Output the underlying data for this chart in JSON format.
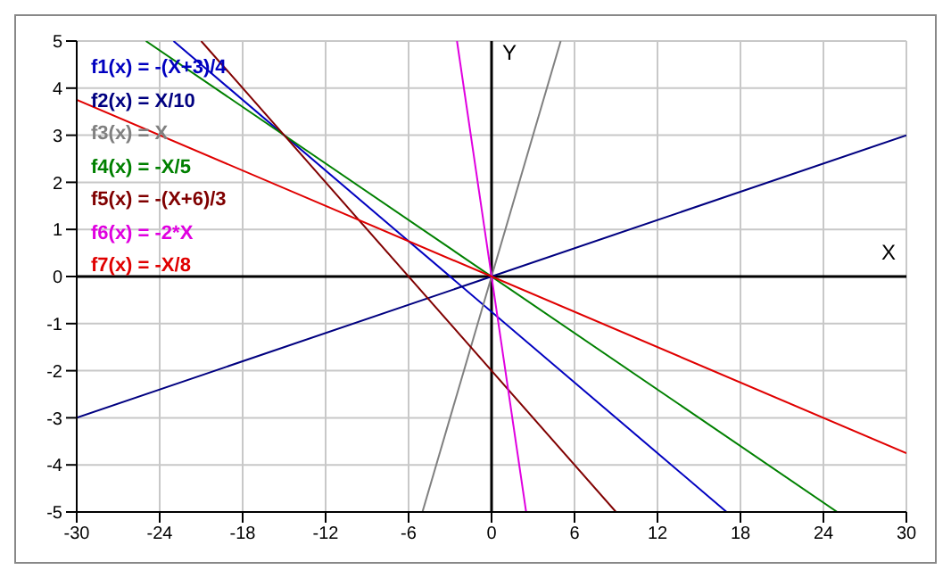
{
  "chart_data": {
    "type": "line",
    "xlabel": "X",
    "ylabel": "Y",
    "xlim": [
      -30,
      30
    ],
    "ylim": [
      -5,
      5
    ],
    "xticks": [
      -30,
      -24,
      -18,
      -12,
      -6,
      0,
      6,
      12,
      18,
      24,
      30
    ],
    "yticks": [
      -5,
      -4,
      -3,
      -2,
      -1,
      0,
      1,
      2,
      3,
      4,
      5
    ],
    "grid": true,
    "legend": "top left",
    "marker": "none",
    "line_style": "solid",
    "series": [
      {
        "name": "f1(x) = -(X+3)/4",
        "color": "#0000c0",
        "x": [
          -23,
          17
        ],
        "values": [
          5,
          -5
        ]
      },
      {
        "name": "f2(x) = X/10",
        "color": "#000080",
        "x": [
          -30,
          30
        ],
        "values": [
          -3,
          3
        ]
      },
      {
        "name": "f3(x) = X",
        "color": "#808080",
        "x": [
          -5,
          5
        ],
        "values": [
          -5,
          5
        ]
      },
      {
        "name": "f4(x) = -X/5",
        "color": "#008000",
        "x": [
          -25,
          25
        ],
        "values": [
          5,
          -5
        ]
      },
      {
        "name": "f5(x) = -(X+6)/3",
        "color": "#800000",
        "x": [
          -21,
          9
        ],
        "values": [
          5,
          -5
        ]
      },
      {
        "name": "f6(x) = -2*X",
        "color": "#e000e0",
        "x": [
          -2.5,
          2.5
        ],
        "values": [
          5,
          -5
        ]
      },
      {
        "name": "f7(x) = -X/8",
        "color": "#e00000",
        "x": [
          -30,
          30
        ],
        "values": [
          3.75,
          -3.75
        ]
      }
    ]
  }
}
